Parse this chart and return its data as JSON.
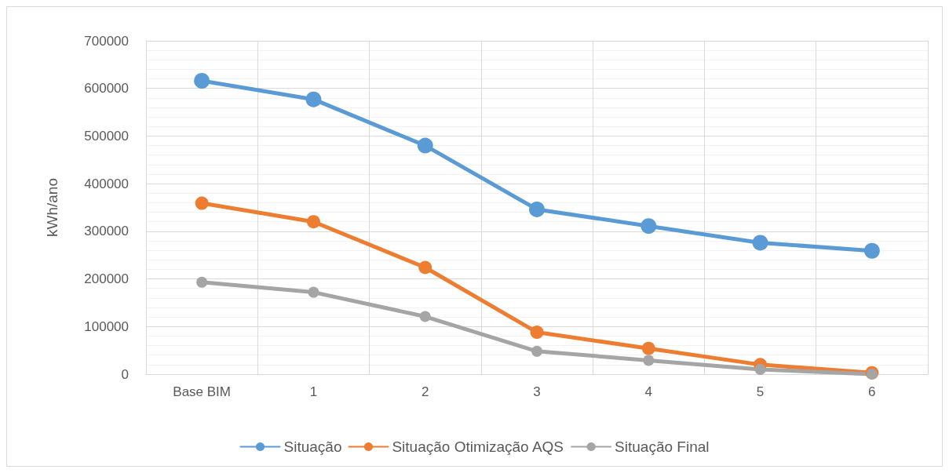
{
  "chart_data": {
    "type": "line",
    "ylabel": "kWh/ano",
    "categories": [
      "Base BIM",
      "1",
      "2",
      "3",
      "4",
      "5",
      "6"
    ],
    "series": [
      {
        "name": "Situação",
        "color": "#5b9bd5",
        "values": [
          616000,
          577000,
          480000,
          346000,
          311000,
          276000,
          259000
        ]
      },
      {
        "name": "Situação Otimização AQS",
        "color": "#ed7d31",
        "values": [
          359000,
          320000,
          224000,
          88000,
          54000,
          20000,
          3000
        ]
      },
      {
        "name": "Situação Final",
        "color": "#a5a5a5",
        "values": [
          193000,
          172000,
          121000,
          48000,
          29000,
          10000,
          0
        ]
      }
    ],
    "ylim": [
      0,
      700000
    ],
    "yticks": [
      0,
      100000,
      200000,
      300000,
      400000,
      500000,
      600000,
      700000
    ],
    "grid": true,
    "legend": "bottom",
    "marker": "circle",
    "line_style": "solid"
  }
}
